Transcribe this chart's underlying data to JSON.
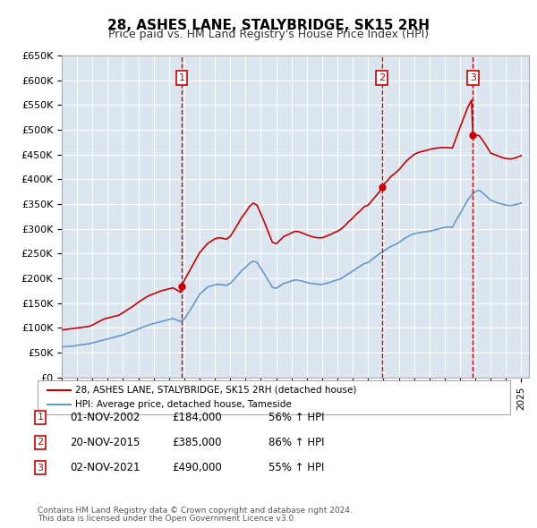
{
  "title": "28, ASHES LANE, STALYBRIDGE, SK15 2RH",
  "subtitle": "Price paid vs. HM Land Registry's House Price Index (HPI)",
  "ylabel": "",
  "bg_color": "#dce6f1",
  "fig_bg": "#ffffff",
  "ylim": [
    0,
    650000
  ],
  "yticks": [
    0,
    50000,
    100000,
    150000,
    200000,
    250000,
    300000,
    350000,
    400000,
    450000,
    500000,
    550000,
    600000,
    650000
  ],
  "ytick_labels": [
    "£0",
    "£50K",
    "£100K",
    "£150K",
    "£200K",
    "£250K",
    "£300K",
    "£350K",
    "£400K",
    "£450K",
    "£500K",
    "£550K",
    "£600K",
    "£650K"
  ],
  "xlim_start": 1995.0,
  "xlim_end": 2025.5,
  "sales": [
    {
      "date_num": 2002.84,
      "price": 184000,
      "label": "1"
    },
    {
      "date_num": 2015.89,
      "price": 385000,
      "label": "2"
    },
    {
      "date_num": 2021.84,
      "price": 490000,
      "label": "3"
    }
  ],
  "sale_info": [
    {
      "num": "1",
      "date": "01-NOV-2002",
      "price": "£184,000",
      "pct": "56% ↑ HPI"
    },
    {
      "num": "2",
      "date": "20-NOV-2015",
      "price": "£385,000",
      "pct": "86% ↑ HPI"
    },
    {
      "num": "3",
      "date": "02-NOV-2021",
      "price": "£490,000",
      "pct": "55% ↑ HPI"
    }
  ],
  "hpi_years": [
    1995.0,
    1995.25,
    1995.5,
    1995.75,
    1996.0,
    1996.25,
    1996.5,
    1996.75,
    1997.0,
    1997.25,
    1997.5,
    1997.75,
    1998.0,
    1998.25,
    1998.5,
    1998.75,
    1999.0,
    1999.25,
    1999.5,
    1999.75,
    2000.0,
    2000.25,
    2000.5,
    2000.75,
    2001.0,
    2001.25,
    2001.5,
    2001.75,
    2002.0,
    2002.25,
    2002.5,
    2002.75,
    2003.0,
    2003.25,
    2003.5,
    2003.75,
    2004.0,
    2004.25,
    2004.5,
    2004.75,
    2005.0,
    2005.25,
    2005.5,
    2005.75,
    2006.0,
    2006.25,
    2006.5,
    2006.75,
    2007.0,
    2007.25,
    2007.5,
    2007.75,
    2008.0,
    2008.25,
    2008.5,
    2008.75,
    2009.0,
    2009.25,
    2009.5,
    2009.75,
    2010.0,
    2010.25,
    2010.5,
    2010.75,
    2011.0,
    2011.25,
    2011.5,
    2011.75,
    2012.0,
    2012.25,
    2012.5,
    2012.75,
    2013.0,
    2013.25,
    2013.5,
    2013.75,
    2014.0,
    2014.25,
    2014.5,
    2014.75,
    2015.0,
    2015.25,
    2015.5,
    2015.75,
    2016.0,
    2016.25,
    2016.5,
    2016.75,
    2017.0,
    2017.25,
    2017.5,
    2017.75,
    2018.0,
    2018.25,
    2018.5,
    2018.75,
    2019.0,
    2019.25,
    2019.5,
    2019.75,
    2020.0,
    2020.25,
    2020.5,
    2020.75,
    2021.0,
    2021.25,
    2021.5,
    2021.75,
    2022.0,
    2022.25,
    2022.5,
    2022.75,
    2023.0,
    2023.25,
    2023.5,
    2023.75,
    2024.0,
    2024.25,
    2024.5,
    2024.75,
    2025.0
  ],
  "hpi_values": [
    62000,
    62500,
    63000,
    63500,
    65000,
    66000,
    67000,
    68000,
    70000,
    72000,
    74000,
    76000,
    78000,
    80000,
    82000,
    84000,
    86000,
    89000,
    92000,
    95000,
    98000,
    101000,
    104000,
    107000,
    109000,
    111000,
    113000,
    115000,
    117000,
    119000,
    116000,
    113000,
    118000,
    130000,
    142000,
    155000,
    168000,
    175000,
    182000,
    185000,
    187000,
    188000,
    187000,
    186000,
    190000,
    198000,
    207000,
    216000,
    222000,
    230000,
    235000,
    232000,
    220000,
    208000,
    195000,
    182000,
    180000,
    185000,
    190000,
    192000,
    195000,
    197000,
    196000,
    194000,
    192000,
    190000,
    189000,
    188000,
    188000,
    190000,
    192000,
    195000,
    197000,
    200000,
    205000,
    210000,
    215000,
    220000,
    225000,
    230000,
    232000,
    238000,
    244000,
    250000,
    255000,
    260000,
    265000,
    268000,
    272000,
    278000,
    283000,
    287000,
    290000,
    292000,
    293000,
    294000,
    295000,
    297000,
    299000,
    301000,
    303000,
    304000,
    303000,
    318000,
    330000,
    345000,
    358000,
    368000,
    375000,
    378000,
    372000,
    365000,
    358000,
    355000,
    352000,
    350000,
    348000,
    347000,
    348000,
    350000,
    352000
  ],
  "price_years": [
    1995.0,
    1995.25,
    1995.5,
    1995.75,
    1996.0,
    1996.25,
    1996.5,
    1996.75,
    1997.0,
    1997.25,
    1997.5,
    1997.75,
    1998.0,
    1998.25,
    1998.5,
    1998.75,
    1999.0,
    1999.25,
    1999.5,
    1999.75,
    2000.0,
    2000.25,
    2000.5,
    2000.75,
    2001.0,
    2001.25,
    2001.5,
    2001.75,
    2002.0,
    2002.25,
    2002.5,
    2002.75,
    2002.84,
    2003.0,
    2003.25,
    2003.5,
    2003.75,
    2004.0,
    2004.25,
    2004.5,
    2004.75,
    2005.0,
    2005.25,
    2005.5,
    2005.75,
    2006.0,
    2006.25,
    2006.5,
    2006.75,
    2007.0,
    2007.25,
    2007.5,
    2007.75,
    2008.0,
    2008.25,
    2008.5,
    2008.75,
    2009.0,
    2009.25,
    2009.5,
    2009.75,
    2010.0,
    2010.25,
    2010.5,
    2010.75,
    2011.0,
    2011.25,
    2011.5,
    2011.75,
    2012.0,
    2012.25,
    2012.5,
    2012.75,
    2013.0,
    2013.25,
    2013.5,
    2013.75,
    2014.0,
    2014.25,
    2014.5,
    2014.75,
    2015.0,
    2015.25,
    2015.5,
    2015.75,
    2015.89,
    2016.0,
    2016.25,
    2016.5,
    2016.75,
    2017.0,
    2017.25,
    2017.5,
    2017.75,
    2018.0,
    2018.25,
    2018.5,
    2018.75,
    2019.0,
    2019.25,
    2019.5,
    2019.75,
    2020.0,
    2020.25,
    2020.5,
    2020.75,
    2021.0,
    2021.25,
    2021.5,
    2021.75,
    2021.84,
    2022.0,
    2022.25,
    2022.5,
    2022.75,
    2023.0,
    2023.25,
    2023.5,
    2023.75,
    2024.0,
    2024.25,
    2024.5,
    2024.75,
    2025.0
  ],
  "price_values": [
    96000,
    97000,
    98000,
    99000,
    100000,
    101000,
    102000,
    103000,
    106000,
    110000,
    114000,
    118000,
    120000,
    122000,
    124000,
    126000,
    131000,
    136000,
    141000,
    146000,
    152000,
    157000,
    162000,
    166000,
    169000,
    172000,
    175000,
    177000,
    179000,
    181000,
    177000,
    172000,
    184000,
    196000,
    210000,
    224000,
    238000,
    252000,
    261000,
    270000,
    275000,
    280000,
    282000,
    281000,
    279000,
    285000,
    297000,
    310000,
    323000,
    333000,
    345000,
    352000,
    348000,
    330000,
    312000,
    292000,
    273000,
    270000,
    277000,
    285000,
    288000,
    292000,
    295000,
    294000,
    291000,
    288000,
    285000,
    283000,
    282000,
    282000,
    285000,
    288000,
    292000,
    295000,
    300000,
    307000,
    315000,
    322000,
    330000,
    337000,
    345000,
    348000,
    357000,
    366000,
    375000,
    385000,
    389000,
    397000,
    406000,
    412000,
    419000,
    428000,
    437000,
    444000,
    450000,
    454000,
    456000,
    458000,
    460000,
    462000,
    463000,
    464000,
    464000,
    464000,
    463000,
    484000,
    505000,
    525000,
    545000,
    560000,
    490000,
    490000,
    488000,
    478000,
    466000,
    453000,
    450000,
    447000,
    444000,
    442000,
    441000,
    442000,
    445000,
    448000
  ],
  "legend_line1": "28, ASHES LANE, STALYBRIDGE, SK15 2RH (detached house)",
  "legend_line2": "HPI: Average price, detached house, Tameside",
  "footnote1": "Contains HM Land Registry data © Crown copyright and database right 2024.",
  "footnote2": "This data is licensed under the Open Government Licence v3.0."
}
